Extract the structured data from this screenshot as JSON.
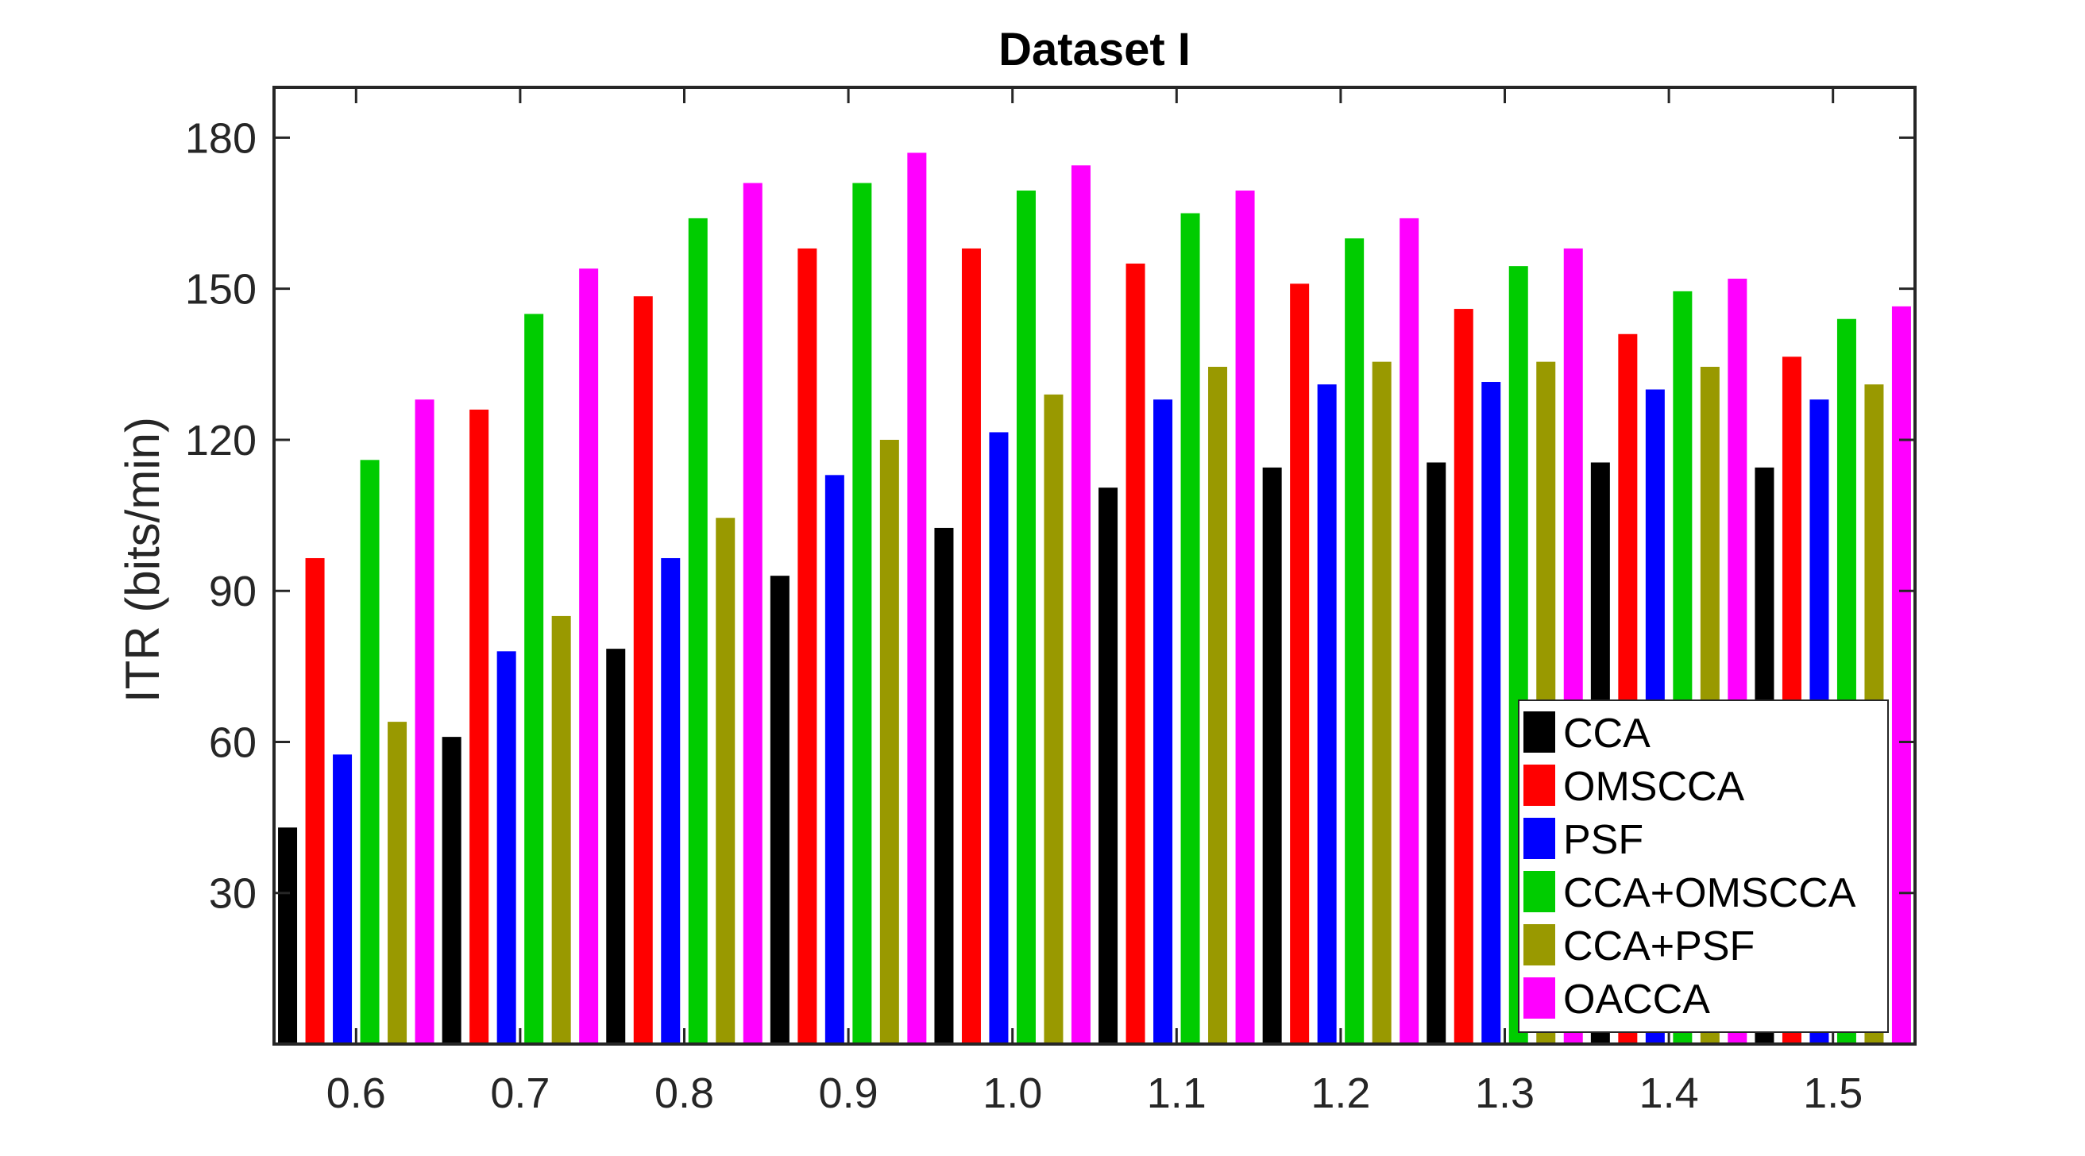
{
  "chart_data": {
    "type": "bar",
    "title": "Dataset I",
    "xlabel": "",
    "ylabel": "ITR (bits/min)",
    "ylim": [
      0,
      190
    ],
    "yticks": [
      30,
      60,
      90,
      120,
      150,
      180
    ],
    "xlim": [
      0.5,
      10.5
    ],
    "grid": false,
    "legend_position": "bottom-right",
    "categories": [
      "0.6",
      "0.7",
      "0.8",
      "0.9",
      "1.0",
      "1.1",
      "1.2",
      "1.3",
      "1.4",
      "1.5"
    ],
    "series": [
      {
        "name": "CCA",
        "color": "#000000",
        "values": [
          43,
          61,
          78.5,
          93,
          102.5,
          110.5,
          114.5,
          115.5,
          115.5,
          114.5
        ]
      },
      {
        "name": "OMSCCA",
        "color": "#ff0000",
        "values": [
          96.5,
          126,
          148.5,
          158,
          158,
          155,
          151,
          146,
          141,
          136.5
        ]
      },
      {
        "name": "PSF",
        "color": "#0000ff",
        "values": [
          57.5,
          78,
          96.5,
          113,
          121.5,
          128,
          131,
          131.5,
          130,
          128
        ]
      },
      {
        "name": "CCA+OMSCCA",
        "color": "#00cc00",
        "values": [
          116,
          145,
          164,
          171,
          169.5,
          165,
          160,
          154.5,
          149.5,
          144
        ]
      },
      {
        "name": "CCA+PSF",
        "color": "#999900",
        "values": [
          64,
          85,
          104.5,
          120,
          129,
          134.5,
          135.5,
          135.5,
          134.5,
          131
        ]
      },
      {
        "name": "OACCA",
        "color": "#ff00ff",
        "values": [
          128,
          154,
          171,
          177,
          174.5,
          169.5,
          164,
          158,
          152,
          146.5
        ]
      }
    ]
  }
}
